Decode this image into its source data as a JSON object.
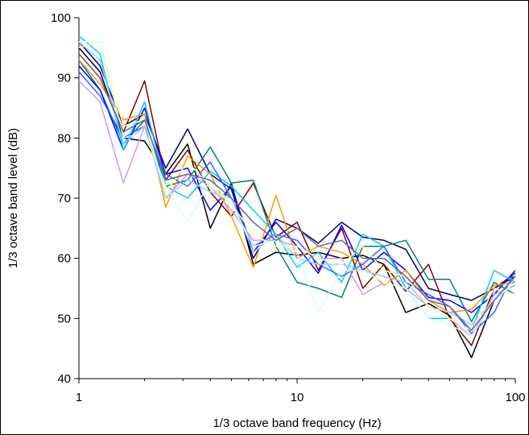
{
  "chart_data": {
    "type": "line",
    "title": "",
    "xlabel": "1/3 octave band frequency (Hz)",
    "ylabel": "1/3 octave band level (dB)",
    "xscale": "log",
    "xlim": [
      1,
      100
    ],
    "ylim": [
      40,
      100
    ],
    "x_ticks": [
      1,
      10,
      100
    ],
    "x_tick_labels": [
      "1",
      "10",
      "100"
    ],
    "y_ticks": [
      40,
      50,
      60,
      70,
      80,
      90,
      100
    ],
    "y_tick_labels": [
      "40",
      "50",
      "60",
      "70",
      "80",
      "90",
      "100"
    ],
    "grid": false,
    "legend": "none",
    "x": [
      1,
      1.25,
      1.6,
      2,
      2.5,
      3.15,
      4,
      5,
      6.3,
      8,
      10,
      12.5,
      16,
      20,
      25,
      31.5,
      40,
      50,
      63,
      80,
      100
    ],
    "series": [
      {
        "color": "#000000",
        "values": [
          95,
          91,
          80,
          79.5,
          74,
          79,
          65,
          72.5,
          59,
          61,
          60.5,
          61,
          60,
          60.5,
          59,
          51,
          52.5,
          50.5,
          43.5,
          53,
          56
        ]
      },
      {
        "color": "#000080",
        "values": [
          96,
          92,
          82,
          84,
          75,
          81.5,
          74,
          71.5,
          60,
          66.5,
          65,
          62.5,
          66,
          63.5,
          63,
          61.5,
          55,
          54,
          53,
          55,
          57
        ]
      },
      {
        "color": "#800000",
        "values": [
          94,
          90,
          81,
          89.5,
          73,
          78,
          71,
          67,
          72.5,
          63.5,
          66,
          58,
          65,
          55,
          59,
          54.5,
          59,
          50,
          45.5,
          55,
          57.5
        ]
      },
      {
        "color": "#008080",
        "values": [
          93,
          88,
          79,
          83,
          72,
          73,
          78.5,
          72.5,
          73,
          62,
          56,
          55,
          53.5,
          62,
          62,
          63,
          56.5,
          56.5,
          49.5,
          56,
          54
        ]
      },
      {
        "color": "#0000ff",
        "values": [
          92,
          88,
          78,
          85,
          74,
          75,
          68,
          72,
          61,
          66,
          62,
          57.5,
          65.5,
          58,
          61,
          58,
          53.5,
          53,
          51,
          54,
          58
        ]
      },
      {
        "color": "#00ccff",
        "values": [
          97,
          94,
          78,
          86,
          72,
          70,
          74.5,
          72,
          68,
          64,
          58.5,
          61,
          56,
          64,
          62,
          55,
          50,
          50,
          48,
          58,
          56
        ]
      },
      {
        "color": "#ff9900",
        "values": [
          93,
          89,
          83,
          84,
          68.5,
          77,
          74,
          67,
          58.5,
          70.5,
          60,
          62,
          61,
          59,
          55.5,
          58,
          53,
          51,
          51.5,
          55.5,
          56
        ]
      },
      {
        "color": "#3366ff",
        "values": [
          91,
          87,
          80,
          82,
          74,
          72,
          76,
          70,
          62,
          64,
          63,
          59,
          57,
          59,
          62,
          56,
          54,
          52,
          47.5,
          51,
          58
        ]
      },
      {
        "color": "#cc99ff",
        "values": [
          89.5,
          86,
          72.5,
          82,
          70,
          74,
          72,
          68,
          63,
          63,
          62,
          60,
          60,
          54,
          56,
          55,
          52,
          50,
          47,
          54,
          55.5
        ]
      },
      {
        "color": "#99ccff",
        "values": [
          96,
          93,
          79,
          82,
          70,
          73,
          71,
          70,
          61,
          64,
          60,
          59,
          59,
          58,
          57,
          56,
          52,
          51,
          49,
          53,
          57
        ]
      },
      {
        "color": "#ffff99",
        "values": [
          95,
          96,
          82,
          83,
          71,
          76,
          72,
          69,
          64,
          62,
          62,
          60,
          59,
          62,
          58,
          57,
          52,
          50,
          48,
          55,
          54
        ]
      },
      {
        "color": "#ccffff",
        "values": [
          96,
          96,
          80,
          81,
          72,
          66,
          73,
          69,
          62,
          63,
          61,
          51,
          58,
          58,
          56,
          55,
          50,
          49,
          47,
          53,
          56
        ]
      },
      {
        "color": "#666699",
        "values": [
          94,
          90,
          81,
          83,
          73,
          74,
          73,
          70,
          66,
          63,
          65,
          62,
          63,
          60,
          60,
          57,
          53,
          52,
          48,
          53,
          57
        ]
      }
    ]
  }
}
